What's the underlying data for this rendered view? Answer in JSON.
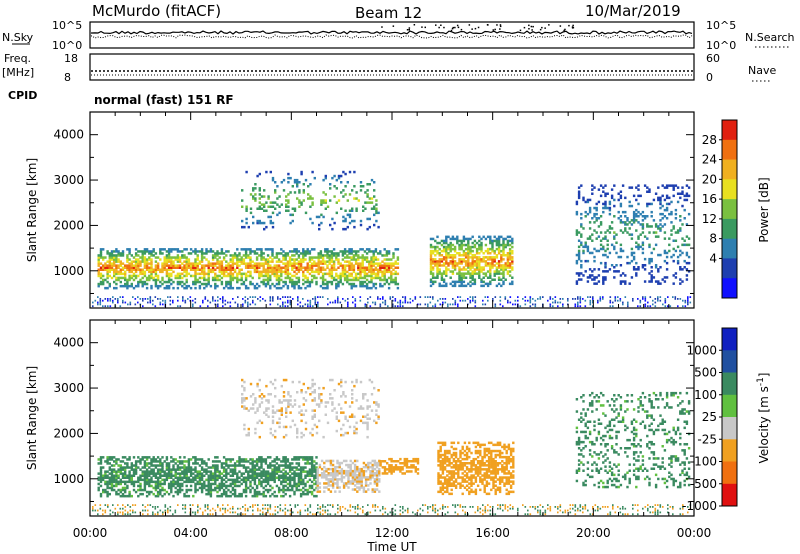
{
  "header": {
    "station": "McMurdo (fitACF)",
    "beam": "Beam 12",
    "date": "10/Mar/2019"
  },
  "nsky_panel": {
    "left_label": "N.Sky",
    "right_label": "N.Search",
    "ticks_left": [
      "10^5",
      "10^0"
    ],
    "ticks_right": [
      "10^5",
      "10^0"
    ]
  },
  "freq_panel": {
    "left_label_1": "Freq.",
    "left_label_2": "[MHz]",
    "right_label": "Nave",
    "ticks_left": [
      "18",
      "8"
    ],
    "ticks_right": [
      "60",
      "0"
    ]
  },
  "cpid": {
    "label": "CPID",
    "value": "normal (fast) 151 RF"
  },
  "chart_data": [
    {
      "type": "heatmap",
      "name_id": "power",
      "xlabel": "Time UT",
      "ylabel": "Slant Range [km]",
      "x_ticks": [
        "00:00",
        "04:00",
        "08:00",
        "12:00",
        "16:00",
        "20:00",
        "00:00"
      ],
      "xlim_hours": [
        0,
        24
      ],
      "ylim_km": [
        180,
        4500
      ],
      "y_ticks": [
        1000,
        2000,
        3000,
        4000
      ],
      "colorbar": {
        "label": "Power [dB]",
        "ticks": [
          "28",
          "24",
          "20",
          "16",
          "12",
          "8",
          "4"
        ],
        "range": [
          0,
          30
        ],
        "colors": [
          "#1010ff",
          "#1e3fb0",
          "#2e7fb0",
          "#3a9a60",
          "#7ac040",
          "#e8e020",
          "#f0b020",
          "#f07010",
          "#e02010"
        ]
      },
      "echo_bands": [
        {
          "t_start": 0.3,
          "t_end": 12.2,
          "range_low": 600,
          "range_high": 1500,
          "peak_db": 28
        },
        {
          "t_start": 13.5,
          "t_end": 16.8,
          "range_low": 650,
          "range_high": 1750,
          "peak_db": 28
        },
        {
          "t_start": 6.0,
          "t_end": 11.5,
          "range_low": 1900,
          "range_high": 3200,
          "peak_db": 18
        },
        {
          "t_start": 19.3,
          "t_end": 23.8,
          "range_low": 700,
          "range_high": 2900,
          "peak_db": 14
        }
      ]
    },
    {
      "type": "heatmap",
      "name_id": "velocity",
      "xlabel": "Time UT",
      "ylabel": "Slant Range [km]",
      "x_ticks": [
        "00:00",
        "04:00",
        "08:00",
        "12:00",
        "16:00",
        "20:00",
        "00:00"
      ],
      "xlim_hours": [
        0,
        24
      ],
      "ylim_km": [
        180,
        4500
      ],
      "y_ticks": [
        1000,
        2000,
        3000,
        4000
      ],
      "colorbar": {
        "label": "Velocity [m s^-1]",
        "ticks": [
          "1000",
          "500",
          "100",
          "25",
          "-25",
          "-100",
          "-500",
          "-1000"
        ],
        "colors": [
          "#1020c0",
          "#2050a0",
          "#3a8a60",
          "#60c040",
          "#c8c8c8",
          "#f0a020",
          "#f07010",
          "#e01010"
        ]
      },
      "echo_bands": [
        {
          "t_start": 0.3,
          "t_end": 9.0,
          "range_low": 600,
          "range_high": 1500,
          "velocity": 100
        },
        {
          "t_start": 9.0,
          "t_end": 11.5,
          "range_low": 700,
          "range_high": 1400,
          "velocity": 25
        },
        {
          "t_start": 11.5,
          "t_end": 13.0,
          "range_low": 1100,
          "range_high": 1450,
          "velocity": -100
        },
        {
          "t_start": 13.8,
          "t_end": 16.8,
          "range_low": 650,
          "range_high": 1800,
          "velocity": -100
        },
        {
          "t_start": 6.0,
          "t_end": 11.5,
          "range_low": 1900,
          "range_high": 3200,
          "velocity": 25
        },
        {
          "t_start": 19.3,
          "t_end": 23.8,
          "range_low": 800,
          "range_high": 2900,
          "velocity": 100
        }
      ]
    }
  ]
}
